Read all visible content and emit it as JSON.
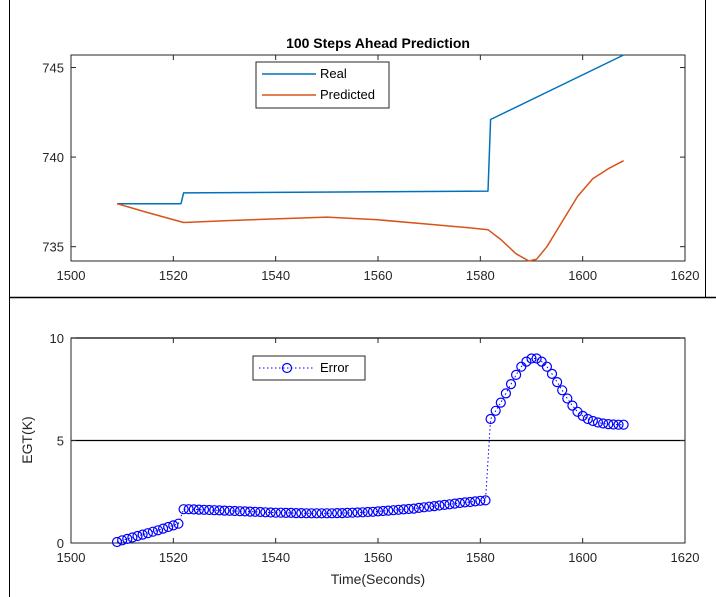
{
  "chart_data": [
    {
      "type": "line",
      "title": "100 Steps Ahead Prediction",
      "xlabel": "",
      "ylabel": "",
      "xlim": [
        1500,
        1620
      ],
      "ylim": [
        734.2,
        745.7
      ],
      "xticks": [
        1500,
        1520,
        1540,
        1560,
        1580,
        1600,
        1620
      ],
      "yticks": [
        735,
        740,
        745
      ],
      "grid": false,
      "legend_position": "top-center",
      "series": [
        {
          "name": "Real",
          "color": "#0072BD",
          "points": [
            [
              1509,
              737.4
            ],
            [
              1521.5,
              737.4
            ],
            [
              1522,
              738.0
            ],
            [
              1581.5,
              738.1
            ],
            [
              1582,
              742.1
            ],
            [
              1608,
              745.7
            ]
          ]
        },
        {
          "name": "Predicted",
          "color": "#D95319",
          "points": [
            [
              1509,
              737.4
            ],
            [
              1515,
              736.9
            ],
            [
              1522,
              736.35
            ],
            [
              1530,
              736.45
            ],
            [
              1540,
              736.55
            ],
            [
              1550,
              736.65
            ],
            [
              1560,
              736.5
            ],
            [
              1570,
              736.25
            ],
            [
              1578,
              736.05
            ],
            [
              1581.5,
              735.95
            ],
            [
              1584,
              735.4
            ],
            [
              1587,
              734.6
            ],
            [
              1589.5,
              734.2
            ],
            [
              1591,
              734.3
            ],
            [
              1593,
              735.0
            ],
            [
              1596,
              736.4
            ],
            [
              1599,
              737.8
            ],
            [
              1602,
              738.8
            ],
            [
              1605,
              739.35
            ],
            [
              1608,
              739.8
            ]
          ]
        }
      ]
    },
    {
      "type": "scatter",
      "title": "",
      "xlabel": "Time(Seconds)",
      "ylabel": "EGT(K)",
      "xlim": [
        1500,
        1620
      ],
      "ylim": [
        0,
        10
      ],
      "xticks": [
        1500,
        1520,
        1540,
        1560,
        1580,
        1600,
        1620
      ],
      "yticks": [
        0,
        5,
        10
      ],
      "reference_lines_y": [
        5,
        10
      ],
      "grid": false,
      "legend_position": "top-left",
      "series": [
        {
          "name": "Error",
          "color": "#0000FF",
          "marker": "circle",
          "line_style": "dotted",
          "points": [
            [
              1509,
              0.05
            ],
            [
              1510,
              0.13
            ],
            [
              1511,
              0.2
            ],
            [
              1512,
              0.27
            ],
            [
              1513,
              0.34
            ],
            [
              1514,
              0.41
            ],
            [
              1515,
              0.48
            ],
            [
              1516,
              0.55
            ],
            [
              1517,
              0.62
            ],
            [
              1518,
              0.7
            ],
            [
              1519,
              0.78
            ],
            [
              1520,
              0.86
            ],
            [
              1521,
              0.94
            ],
            [
              1522,
              1.65
            ],
            [
              1523,
              1.65
            ],
            [
              1524,
              1.64
            ],
            [
              1525,
              1.63
            ],
            [
              1526,
              1.62
            ],
            [
              1527,
              1.61
            ],
            [
              1528,
              1.6
            ],
            [
              1529,
              1.59
            ],
            [
              1530,
              1.58
            ],
            [
              1531,
              1.57
            ],
            [
              1532,
              1.56
            ],
            [
              1533,
              1.55
            ],
            [
              1534,
              1.54
            ],
            [
              1535,
              1.53
            ],
            [
              1536,
              1.52
            ],
            [
              1537,
              1.51
            ],
            [
              1538,
              1.5
            ],
            [
              1539,
              1.49
            ],
            [
              1540,
              1.48
            ],
            [
              1541,
              1.48
            ],
            [
              1542,
              1.47
            ],
            [
              1543,
              1.47
            ],
            [
              1544,
              1.46
            ],
            [
              1545,
              1.46
            ],
            [
              1546,
              1.45
            ],
            [
              1547,
              1.45
            ],
            [
              1548,
              1.45
            ],
            [
              1549,
              1.45
            ],
            [
              1550,
              1.45
            ],
            [
              1551,
              1.45
            ],
            [
              1552,
              1.46
            ],
            [
              1553,
              1.46
            ],
            [
              1554,
              1.47
            ],
            [
              1555,
              1.48
            ],
            [
              1556,
              1.49
            ],
            [
              1557,
              1.5
            ],
            [
              1558,
              1.51
            ],
            [
              1559,
              1.52
            ],
            [
              1560,
              1.54
            ],
            [
              1561,
              1.56
            ],
            [
              1562,
              1.58
            ],
            [
              1563,
              1.6
            ],
            [
              1564,
              1.62
            ],
            [
              1565,
              1.64
            ],
            [
              1566,
              1.66
            ],
            [
              1567,
              1.68
            ],
            [
              1568,
              1.71
            ],
            [
              1569,
              1.74
            ],
            [
              1570,
              1.77
            ],
            [
              1571,
              1.8
            ],
            [
              1572,
              1.83
            ],
            [
              1573,
              1.86
            ],
            [
              1574,
              1.89
            ],
            [
              1575,
              1.92
            ],
            [
              1576,
              1.95
            ],
            [
              1577,
              1.98
            ],
            [
              1578,
              2.0
            ],
            [
              1579,
              2.03
            ],
            [
              1580,
              2.06
            ],
            [
              1581,
              2.08
            ],
            [
              1582,
              6.05
            ],
            [
              1583,
              6.45
            ],
            [
              1584,
              6.85
            ],
            [
              1585,
              7.3
            ],
            [
              1586,
              7.75
            ],
            [
              1587,
              8.2
            ],
            [
              1588,
              8.6
            ],
            [
              1589,
              8.85
            ],
            [
              1590,
              9.0
            ],
            [
              1591,
              9.0
            ],
            [
              1592,
              8.85
            ],
            [
              1593,
              8.6
            ],
            [
              1594,
              8.25
            ],
            [
              1595,
              7.85
            ],
            [
              1596,
              7.45
            ],
            [
              1597,
              7.05
            ],
            [
              1598,
              6.7
            ],
            [
              1599,
              6.4
            ],
            [
              1600,
              6.2
            ],
            [
              1601,
              6.05
            ],
            [
              1602,
              5.95
            ],
            [
              1603,
              5.88
            ],
            [
              1604,
              5.83
            ],
            [
              1605,
              5.8
            ],
            [
              1606,
              5.78
            ],
            [
              1607,
              5.77
            ],
            [
              1608,
              5.77
            ]
          ]
        }
      ]
    }
  ]
}
